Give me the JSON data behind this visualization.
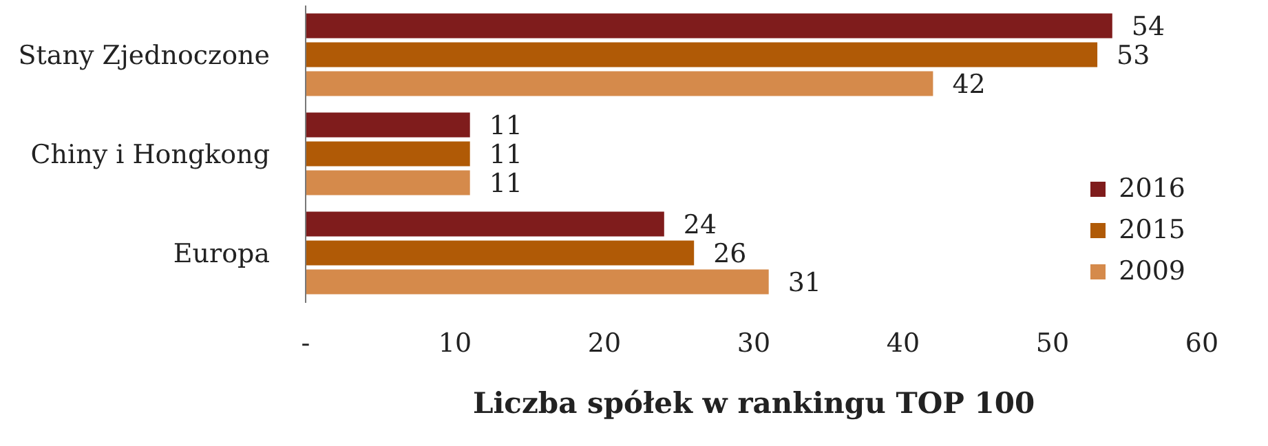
{
  "chart_data": {
    "type": "bar",
    "orientation": "horizontal",
    "xlabel": "Liczba spółek w rankingu TOP 100",
    "categories": [
      "Stany Zjednoczone",
      "Chiny i Hongkong",
      "Europa"
    ],
    "series": [
      {
        "name": "2016",
        "color": "#7f1c1c",
        "values": [
          54,
          11,
          24
        ]
      },
      {
        "name": "2015",
        "color": "#b05a06",
        "values": [
          53,
          11,
          26
        ]
      },
      {
        "name": "2009",
        "color": "#d58a4b",
        "values": [
          42,
          11,
          31
        ]
      }
    ],
    "xlim": [
      0,
      60
    ],
    "xticks": [
      {
        "value": 0,
        "label": "-"
      },
      10,
      20,
      30,
      40,
      50,
      60
    ],
    "data_labels": true,
    "legend": "bottom right",
    "grid": false
  }
}
